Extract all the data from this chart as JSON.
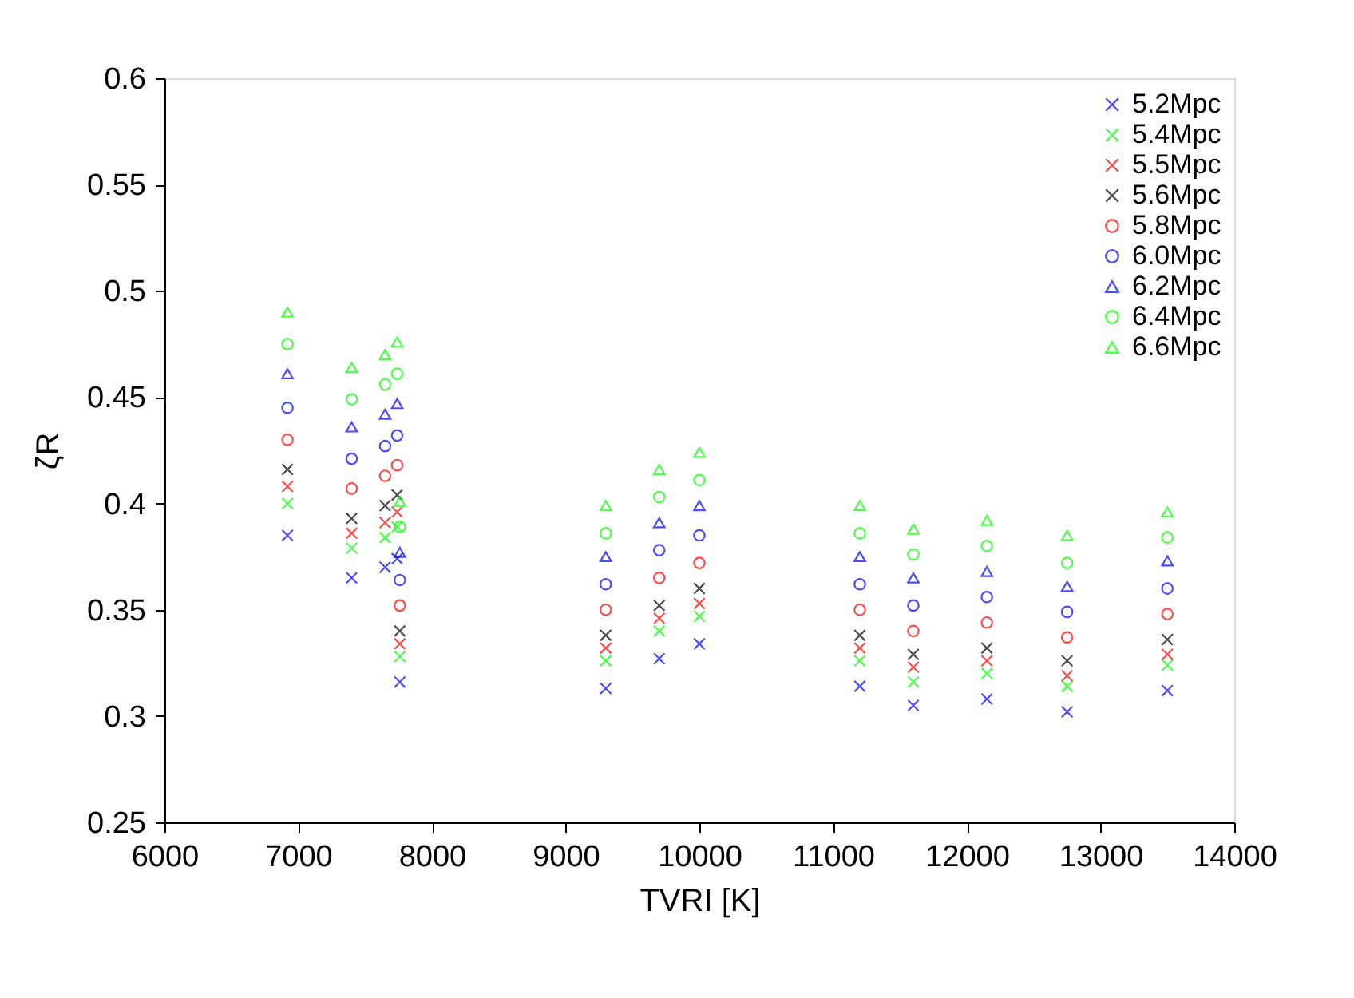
{
  "chart_data": {
    "type": "scatter",
    "xlabel": "TVRI [K]",
    "ylabel": "ζR",
    "x": [
      6920,
      7400,
      7650,
      7740,
      7760,
      9300,
      9700,
      10000,
      11200,
      11600,
      12150,
      12750,
      13500
    ],
    "xlim": [
      6000,
      14000
    ],
    "xticks": [
      6000,
      7000,
      8000,
      9000,
      10000,
      11000,
      12000,
      13000,
      14000
    ],
    "ylim": [
      0.25,
      0.6
    ],
    "yticks": [
      0.25,
      0.3,
      0.35,
      0.4,
      0.45,
      0.5,
      0.55,
      0.6
    ],
    "grid": false,
    "legend": "top right",
    "series": [
      {
        "name": "5.2Mpc",
        "color": "#0000ff",
        "marker": "cross",
        "values": [
          0.385,
          0.365,
          0.37,
          0.374,
          0.316,
          0.313,
          0.327,
          0.334,
          0.314,
          0.305,
          0.308,
          0.302,
          0.312
        ]
      },
      {
        "name": "5.4Mpc",
        "color": "#00ff00",
        "marker": "cross",
        "values": [
          0.4,
          0.379,
          0.384,
          0.389,
          0.328,
          0.326,
          0.34,
          0.347,
          0.326,
          0.316,
          0.32,
          0.314,
          0.324
        ]
      },
      {
        "name": "5.5Mpc",
        "color": "#ff0000",
        "marker": "cross",
        "values": [
          0.408,
          0.386,
          0.391,
          0.396,
          0.334,
          0.332,
          0.346,
          0.353,
          0.332,
          0.323,
          0.326,
          0.319,
          0.329
        ]
      },
      {
        "name": "5.6Mpc",
        "color": "#000000",
        "marker": "cross",
        "values": [
          0.416,
          0.393,
          0.399,
          0.404,
          0.34,
          0.338,
          0.352,
          0.36,
          0.338,
          0.329,
          0.332,
          0.326,
          0.336
        ]
      },
      {
        "name": "5.8Mpc",
        "color": "#ff0000",
        "marker": "circle",
        "values": [
          0.43,
          0.407,
          0.413,
          0.418,
          0.352,
          0.35,
          0.365,
          0.372,
          0.35,
          0.34,
          0.344,
          0.337,
          0.348
        ]
      },
      {
        "name": "6.0Mpc",
        "color": "#0000ff",
        "marker": "circle",
        "values": [
          0.445,
          0.421,
          0.427,
          0.432,
          0.364,
          0.362,
          0.378,
          0.385,
          0.362,
          0.352,
          0.356,
          0.349,
          0.36
        ]
      },
      {
        "name": "6.2Mpc",
        "color": "#0000ff",
        "marker": "triangle",
        "values": [
          0.461,
          0.436,
          0.442,
          0.447,
          0.377,
          0.375,
          0.391,
          0.399,
          0.375,
          0.365,
          0.368,
          0.361,
          0.373
        ]
      },
      {
        "name": "6.4Mpc",
        "color": "#00ff00",
        "marker": "circle",
        "values": [
          0.475,
          0.449,
          0.456,
          0.461,
          0.389,
          0.386,
          0.403,
          0.411,
          0.386,
          0.376,
          0.38,
          0.372,
          0.384
        ]
      },
      {
        "name": "6.6Mpc",
        "color": "#00ff00",
        "marker": "triangle",
        "values": [
          0.49,
          0.464,
          0.47,
          0.476,
          0.401,
          0.399,
          0.416,
          0.424,
          0.399,
          0.388,
          0.392,
          0.385,
          0.396
        ]
      }
    ]
  }
}
